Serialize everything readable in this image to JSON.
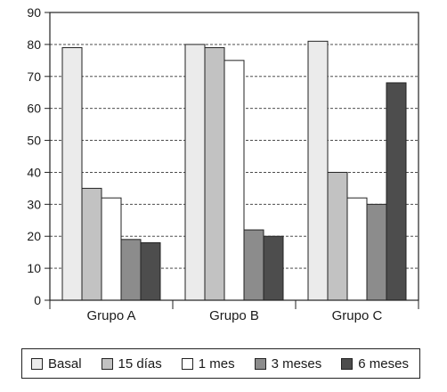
{
  "chart_data": {
    "type": "bar",
    "categories": [
      "Grupo A",
      "Grupo B",
      "Grupo C"
    ],
    "series": [
      {
        "name": "Basal",
        "color": "#ebebeb",
        "values": [
          79,
          80,
          81
        ]
      },
      {
        "name": "15 días",
        "color": "#c2c2c2",
        "values": [
          35,
          79,
          40
        ]
      },
      {
        "name": "1 mes",
        "color": "#ffffff",
        "values": [
          32,
          75,
          32
        ]
      },
      {
        "name": "3 meses",
        "color": "#8c8c8c",
        "values": [
          19,
          22,
          30
        ]
      },
      {
        "name": "6 meses",
        "color": "#4d4d4d",
        "values": [
          18,
          20,
          68
        ]
      }
    ],
    "ylim": [
      0,
      90
    ],
    "yticks": [
      0,
      10,
      20,
      30,
      40,
      50,
      60,
      70,
      80,
      90
    ],
    "grid": "horizontal dashed",
    "legend_position": "bottom",
    "title": "",
    "xlabel": "",
    "ylabel": ""
  }
}
